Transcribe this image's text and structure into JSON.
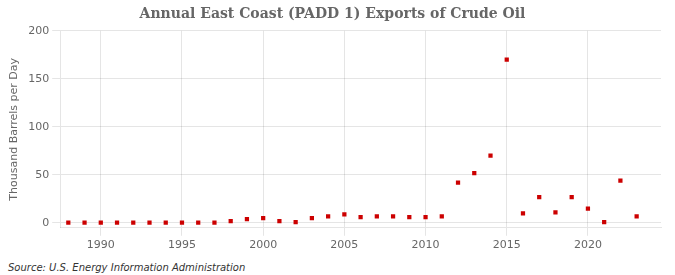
{
  "chart_data": {
    "type": "scatter",
    "title": "Annual East Coast (PADD 1) Exports of Crude Oil",
    "ylabel": "Thousand Barrels per Day",
    "source": "Source: U.S. Energy Information Administration",
    "x": [
      1988,
      1989,
      1990,
      1991,
      1992,
      1993,
      1994,
      1995,
      1996,
      1997,
      1998,
      1999,
      2000,
      2001,
      2002,
      2003,
      2004,
      2005,
      2006,
      2007,
      2008,
      2009,
      2010,
      2011,
      2012,
      2013,
      2014,
      2015,
      2016,
      2017,
      2018,
      2019,
      2020,
      2021,
      2022,
      2023
    ],
    "values": [
      0.5,
      0.5,
      0.5,
      0.5,
      0.5,
      0.5,
      0.5,
      0.5,
      0.5,
      0.5,
      2.0,
      4.0,
      5.0,
      2.0,
      1.0,
      5.0,
      7.0,
      9.0,
      6.0,
      7.0,
      7.0,
      6.0,
      6.0,
      7.0,
      42.0,
      52.0,
      70.0,
      170.0,
      10.0,
      27.0,
      11.0,
      27.0,
      15.0,
      1.0,
      44.0,
      7.0
    ],
    "color": "#cc0000",
    "marker": "square",
    "xlim": [
      1987.5,
      2024.5
    ],
    "xticks": [
      1990,
      1995,
      2000,
      2005,
      2010,
      2015,
      2020
    ],
    "ylim": [
      -5,
      200
    ],
    "yticks": [
      0,
      50,
      100,
      150,
      200
    ],
    "grid": true
  }
}
